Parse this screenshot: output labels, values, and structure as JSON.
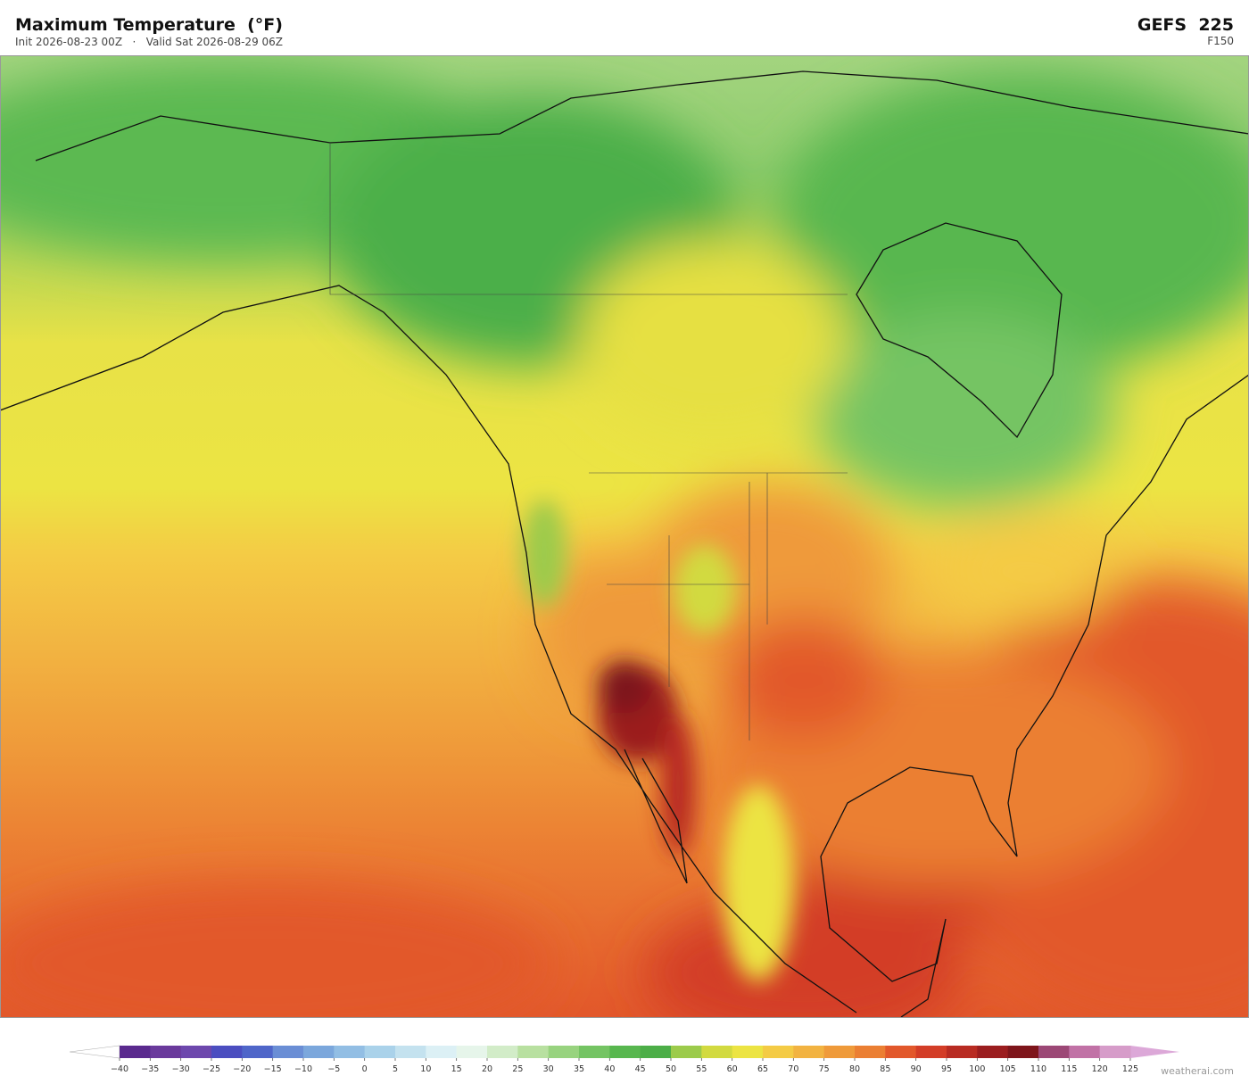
{
  "header": {
    "title": "Maximum Temperature  (°F)",
    "subtitle": "Init 2026-08-23 00Z   ·   Valid Sat 2026-08-29 06Z",
    "model": "GEFS  225",
    "forecast_hour": "F150"
  },
  "colorbar": {
    "ticks": [
      {
        "value": -40,
        "label": "−40"
      },
      {
        "value": -35,
        "label": "−35"
      },
      {
        "value": -30,
        "label": "−30"
      },
      {
        "value": -25,
        "label": "−25"
      },
      {
        "value": -20,
        "label": "−20"
      },
      {
        "value": -15,
        "label": "−15"
      },
      {
        "value": -10,
        "label": "−10"
      },
      {
        "value": -5,
        "label": "−5"
      },
      0,
      5,
      10,
      15,
      20,
      25,
      30,
      35,
      40,
      45,
      50,
      55,
      60,
      65,
      70,
      75,
      80,
      85,
      90,
      95,
      100,
      105,
      110,
      115,
      120,
      125
    ],
    "colors": [
      "#5a2a8e",
      "#6a3a9c",
      "#6d48ad",
      "#4b4ec0",
      "#4f66c9",
      "#6a8ed5",
      "#7ba7dc",
      "#92bee4",
      "#aad2ea",
      "#c4e2ef",
      "#dcf0f5",
      "#e6f5ea",
      "#d2ecc8",
      "#b8e0a0",
      "#98d37f",
      "#74c463",
      "#58b74f",
      "#4cae48",
      "#9ccb4b",
      "#d2da40",
      "#ece443",
      "#f4cb45",
      "#f2b341",
      "#ef9a3a",
      "#eb7f33",
      "#e2582b",
      "#d33d27",
      "#b82b22",
      "#9b1d1f",
      "#7e151b",
      "#9c4876",
      "#c172a6",
      "#d69cc9"
    ],
    "under_color": "#ffffff",
    "over_color": "#dca8d8"
  },
  "footer": {
    "credit": "weatherai.com"
  }
}
